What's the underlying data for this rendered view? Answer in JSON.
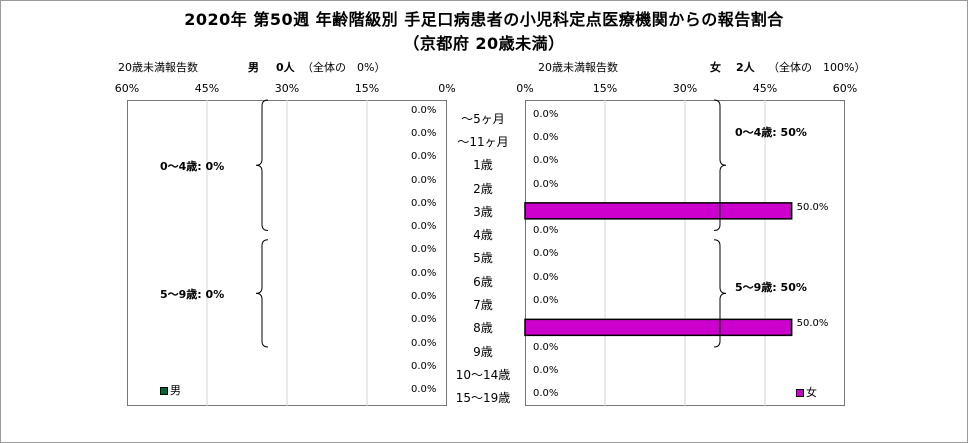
{
  "title": {
    "line1": "2020年 第50週 年齢階級別 手足口病患者の小児科定点医療機関からの報告割合",
    "line2": "（京都府 20歳未満）"
  },
  "left_header": {
    "label": "20歳未満報告数",
    "sex": "男",
    "count": "0人",
    "share": "（全体の　0%）"
  },
  "right_header": {
    "label": "20歳未満報告数",
    "sex": "女",
    "count": "2人",
    "share": "（全体の　100%）"
  },
  "colors": {
    "female_bar": "#cc00cc",
    "male_bar": "#006633"
  },
  "chart_data": {
    "type": "bar",
    "orientation": "horizontal",
    "layout": "population-pyramid",
    "categories": [
      "～5ヶ月",
      "～11ヶ月",
      "1歳",
      "2歳",
      "3歳",
      "4歳",
      "5歳",
      "6歳",
      "7歳",
      "8歳",
      "9歳",
      "10～14歳",
      "15～19歳"
    ],
    "series": [
      {
        "name": "男",
        "values": [
          0,
          0,
          0,
          0,
          0,
          0,
          0,
          0,
          0,
          0,
          0,
          0,
          0
        ],
        "labels": [
          "0.0%",
          "0.0%",
          "0.0%",
          "0.0%",
          "0.0%",
          "0.0%",
          "0.0%",
          "0.0%",
          "0.0%",
          "0.0%",
          "0.0%",
          "0.0%",
          "0.0%"
        ]
      },
      {
        "name": "女",
        "values": [
          0,
          0,
          0,
          0,
          50,
          0,
          0,
          0,
          0,
          50,
          0,
          0,
          0
        ],
        "labels": [
          "0.0%",
          "0.0%",
          "0.0%",
          "0.0%",
          "50.0%",
          "0.0%",
          "0.0%",
          "0.0%",
          "0.0%",
          "50.0%",
          "0.0%",
          "0.0%",
          "0.0%"
        ]
      }
    ],
    "xlim": [
      0,
      60
    ],
    "left_ticks": [
      "60%",
      "45%",
      "30%",
      "15%",
      "0%"
    ],
    "right_ticks": [
      "0%",
      "15%",
      "30%",
      "45%",
      "60%"
    ],
    "groups": {
      "male": [
        {
          "label": "0～4歳: 0%",
          "from": 0,
          "to": 5
        },
        {
          "label": "5～9歳: 0%",
          "from": 6,
          "to": 10
        }
      ],
      "female": [
        {
          "label": "0～4歳: 50%",
          "from": 0,
          "to": 5
        },
        {
          "label": "5～9歳: 50%",
          "from": 6,
          "to": 10
        }
      ]
    },
    "legend": {
      "male": "男",
      "female": "女"
    },
    "grid": true
  }
}
